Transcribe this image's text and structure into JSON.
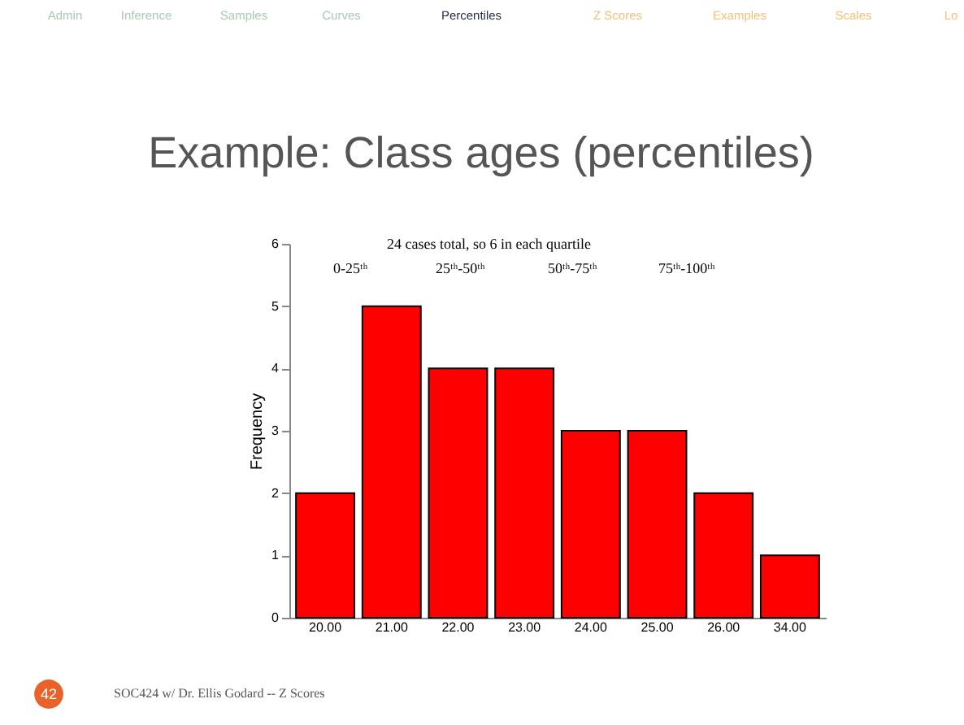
{
  "chart_data": {
    "type": "bar",
    "title": "Example: Class ages (percentiles)",
    "ylabel": "Frequency",
    "categories": [
      "20.00",
      "21.00",
      "22.00",
      "23.00",
      "24.00",
      "25.00",
      "26.00",
      "34.00"
    ],
    "values": [
      2,
      5,
      4,
      4,
      3,
      3,
      2,
      1
    ],
    "color": "#ff0000",
    "ylim": [
      0,
      6
    ],
    "yticks": [
      0,
      1,
      2,
      3,
      4,
      5,
      6
    ],
    "grid": false,
    "annotations": [
      "Admin",
      "Inference",
      "Samples",
      "Curves",
      "Percentiles",
      "Z Scores",
      "Examples",
      "Scales",
      "Lo",
      "24 cases total, so 6 in each quartile",
      "0-25ᵗʰ",
      "25ᵗʰ-50ᵗʰ",
      "50ᵗʰ-75ᵗʰ",
      "75ᵗʰ-100ᵗʰ",
      "42",
      "SOC424 w/ Dr. Ellis Godard -- Z Scores"
    ]
  }
}
